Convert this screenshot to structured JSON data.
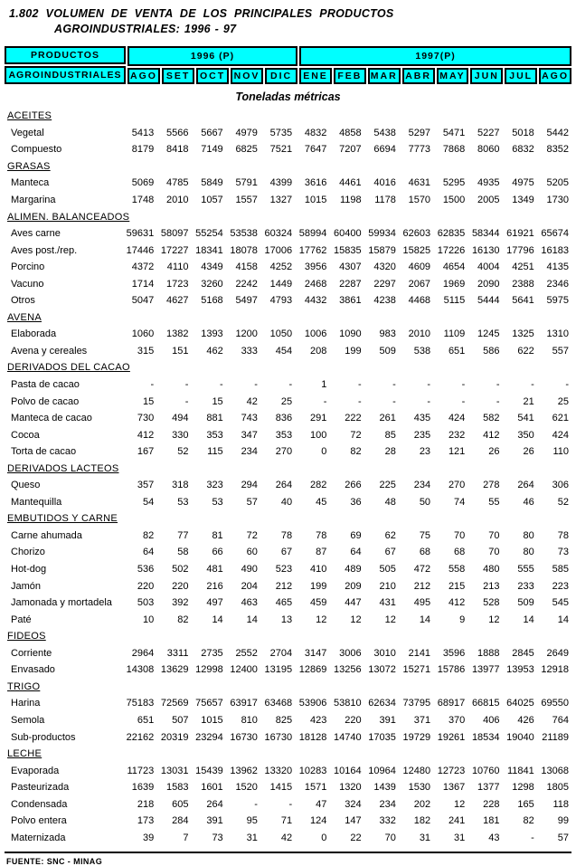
{
  "title": {
    "line1": "1.802  VOLUMEN DE VENTA DE LOS PRINCIPALES PRODUCTOS",
    "line2": "AGROINDUSTRIALES: 1996 - 97"
  },
  "units_label": "Toneladas métricas",
  "footer": "FUENTE: SNC - MINAG",
  "colors": {
    "header_bg": "#00ffff",
    "border": "#000000"
  },
  "header": {
    "col1_line1": "PRODUCTOS",
    "col1_line2": "AGROINDUSTRIALES",
    "year_groups": [
      {
        "label": "1996 (P)",
        "months": [
          "AGO",
          "SET",
          "OCT",
          "NOV",
          "DIC"
        ]
      },
      {
        "label": "1997(P)",
        "months": [
          "ENE",
          "FEB",
          "MAR",
          "ABR",
          "MAY",
          "JUN",
          "JUL",
          "AGO"
        ]
      }
    ]
  },
  "sections": [
    {
      "name": "ACEITES",
      "rows": [
        {
          "label": "Vegetal",
          "values": [
            "5413",
            "5566",
            "5667",
            "4979",
            "5735",
            "4832",
            "4858",
            "5438",
            "5297",
            "5471",
            "5227",
            "5018",
            "5442"
          ]
        },
        {
          "label": "Compuesto",
          "values": [
            "8179",
            "8418",
            "7149",
            "6825",
            "7521",
            "7647",
            "7207",
            "6694",
            "7773",
            "7868",
            "8060",
            "6832",
            "8352"
          ]
        }
      ]
    },
    {
      "name": "GRASAS",
      "rows": [
        {
          "label": "Manteca",
          "values": [
            "5069",
            "4785",
            "5849",
            "5791",
            "4399",
            "3616",
            "4461",
            "4016",
            "4631",
            "5295",
            "4935",
            "4975",
            "5205"
          ]
        },
        {
          "label": "Margarina",
          "values": [
            "1748",
            "2010",
            "1057",
            "1557",
            "1327",
            "1015",
            "1198",
            "1178",
            "1570",
            "1500",
            "2005",
            "1349",
            "1730"
          ]
        }
      ]
    },
    {
      "name": "ALIMEN. BALANCEADOS",
      "rows": [
        {
          "label": "Aves carne",
          "values": [
            "59631",
            "58097",
            "55254",
            "53538",
            "60324",
            "58994",
            "60400",
            "59934",
            "62603",
            "62835",
            "58344",
            "61921",
            "65674"
          ]
        },
        {
          "label": "Aves post./rep.",
          "values": [
            "17446",
            "17227",
            "18341",
            "18078",
            "17006",
            "17762",
            "15835",
            "15879",
            "15825",
            "17226",
            "16130",
            "17796",
            "16183"
          ]
        },
        {
          "label": "Porcino",
          "values": [
            "4372",
            "4110",
            "4349",
            "4158",
            "4252",
            "3956",
            "4307",
            "4320",
            "4609",
            "4654",
            "4004",
            "4251",
            "4135"
          ]
        },
        {
          "label": "Vacuno",
          "values": [
            "1714",
            "1723",
            "3260",
            "2242",
            "1449",
            "2468",
            "2287",
            "2297",
            "2067",
            "1969",
            "2090",
            "2388",
            "2346"
          ]
        },
        {
          "label": "Otros",
          "values": [
            "5047",
            "4627",
            "5168",
            "5497",
            "4793",
            "4432",
            "3861",
            "4238",
            "4468",
            "5115",
            "5444",
            "5641",
            "5975"
          ]
        }
      ]
    },
    {
      "name": "AVENA",
      "rows": [
        {
          "label": "Elaborada",
          "values": [
            "1060",
            "1382",
            "1393",
            "1200",
            "1050",
            "1006",
            "1090",
            "983",
            "2010",
            "1109",
            "1245",
            "1325",
            "1310"
          ]
        },
        {
          "label": "Avena y cereales",
          "values": [
            "315",
            "151",
            "462",
            "333",
            "454",
            "208",
            "199",
            "509",
            "538",
            "651",
            "586",
            "622",
            "557"
          ]
        }
      ]
    },
    {
      "name": "DERIVADOS DEL CACAO",
      "rows": [
        {
          "label": "Pasta de cacao",
          "values": [
            "-",
            "-",
            "-",
            "-",
            "-",
            "1",
            "-",
            "-",
            "-",
            "-",
            "-",
            "-",
            "-"
          ]
        },
        {
          "label": "Polvo de cacao",
          "values": [
            "15",
            "-",
            "15",
            "42",
            "25",
            "-",
            "-",
            "-",
            "-",
            "-",
            "-",
            "21",
            "25"
          ]
        },
        {
          "label": "Manteca de cacao",
          "values": [
            "730",
            "494",
            "881",
            "743",
            "836",
            "291",
            "222",
            "261",
            "435",
            "424",
            "582",
            "541",
            "621"
          ]
        },
        {
          "label": "Cocoa",
          "values": [
            "412",
            "330",
            "353",
            "347",
            "353",
            "100",
            "72",
            "85",
            "235",
            "232",
            "412",
            "350",
            "424"
          ]
        },
        {
          "label": "Torta de cacao",
          "values": [
            "167",
            "52",
            "115",
            "234",
            "270",
            "0",
            "82",
            "28",
            "23",
            "121",
            "26",
            "26",
            "110"
          ]
        }
      ]
    },
    {
      "name": "DERIVADOS LACTEOS",
      "rows": [
        {
          "label": "Queso",
          "values": [
            "357",
            "318",
            "323",
            "294",
            "264",
            "282",
            "266",
            "225",
            "234",
            "270",
            "278",
            "264",
            "306"
          ]
        },
        {
          "label": "Mantequilla",
          "values": [
            "54",
            "53",
            "53",
            "57",
            "40",
            "45",
            "36",
            "48",
            "50",
            "74",
            "55",
            "46",
            "52"
          ]
        }
      ]
    },
    {
      "name": "EMBUTIDOS Y CARNE",
      "rows": [
        {
          "label": "Carne ahumada",
          "values": [
            "82",
            "77",
            "81",
            "72",
            "78",
            "78",
            "69",
            "62",
            "75",
            "70",
            "70",
            "80",
            "78"
          ]
        },
        {
          "label": "Chorizo",
          "values": [
            "64",
            "58",
            "66",
            "60",
            "67",
            "87",
            "64",
            "67",
            "68",
            "68",
            "70",
            "80",
            "73"
          ]
        },
        {
          "label": "Hot-dog",
          "values": [
            "536",
            "502",
            "481",
            "490",
            "523",
            "410",
            "489",
            "505",
            "472",
            "558",
            "480",
            "555",
            "585"
          ]
        },
        {
          "label": "Jamón",
          "values": [
            "220",
            "220",
            "216",
            "204",
            "212",
            "199",
            "209",
            "210",
            "212",
            "215",
            "213",
            "233",
            "223"
          ]
        },
        {
          "label": "Jamonada y mortadela",
          "values": [
            "503",
            "392",
            "497",
            "463",
            "465",
            "459",
            "447",
            "431",
            "495",
            "412",
            "528",
            "509",
            "545"
          ]
        },
        {
          "label": "Paté",
          "values": [
            "10",
            "82",
            "14",
            "14",
            "13",
            "12",
            "12",
            "12",
            "14",
            "9",
            "12",
            "14",
            "14"
          ]
        }
      ]
    },
    {
      "name": "FIDEOS",
      "rows": [
        {
          "label": "Corriente",
          "values": [
            "2964",
            "3311",
            "2735",
            "2552",
            "2704",
            "3147",
            "3006",
            "3010",
            "2141",
            "3596",
            "1888",
            "2845",
            "2649"
          ]
        },
        {
          "label": "Envasado",
          "values": [
            "14308",
            "13629",
            "12998",
            "12400",
            "13195",
            "12869",
            "13256",
            "13072",
            "15271",
            "15786",
            "13977",
            "13953",
            "12918"
          ]
        }
      ]
    },
    {
      "name": "TRIGO",
      "rows": [
        {
          "label": "Harina",
          "values": [
            "75183",
            "72569",
            "75657",
            "63917",
            "63468",
            "53906",
            "53810",
            "62634",
            "73795",
            "68917",
            "66815",
            "64025",
            "69550"
          ]
        },
        {
          "label": "Semola",
          "values": [
            "651",
            "507",
            "1015",
            "810",
            "825",
            "423",
            "220",
            "391",
            "371",
            "370",
            "406",
            "426",
            "764"
          ]
        },
        {
          "label": "Sub-productos",
          "values": [
            "22162",
            "20319",
            "23294",
            "16730",
            "16730",
            "18128",
            "14740",
            "17035",
            "19729",
            "19261",
            "18534",
            "19040",
            "21189"
          ]
        }
      ]
    },
    {
      "name": "LECHE",
      "rows": [
        {
          "label": "Evaporada",
          "values": [
            "11723",
            "13031",
            "15439",
            "13962",
            "13320",
            "10283",
            "10164",
            "10964",
            "12480",
            "12723",
            "10760",
            "11841",
            "13068"
          ]
        },
        {
          "label": "Pasteurizada",
          "values": [
            "1639",
            "1583",
            "1601",
            "1520",
            "1415",
            "1571",
            "1320",
            "1439",
            "1530",
            "1367",
            "1377",
            "1298",
            "1805"
          ]
        },
        {
          "label": "Condensada",
          "values": [
            "218",
            "605",
            "264",
            "-",
            "-",
            "47",
            "324",
            "234",
            "202",
            "12",
            "228",
            "165",
            "118"
          ]
        },
        {
          "label": "Polvo entera",
          "values": [
            "173",
            "284",
            "391",
            "95",
            "71",
            "124",
            "147",
            "332",
            "182",
            "241",
            "181",
            "82",
            "99"
          ]
        },
        {
          "label": "Maternizada",
          "values": [
            "39",
            "7",
            "73",
            "31",
            "42",
            "0",
            "22",
            "70",
            "31",
            "31",
            "43",
            "-",
            "57"
          ]
        }
      ]
    }
  ]
}
